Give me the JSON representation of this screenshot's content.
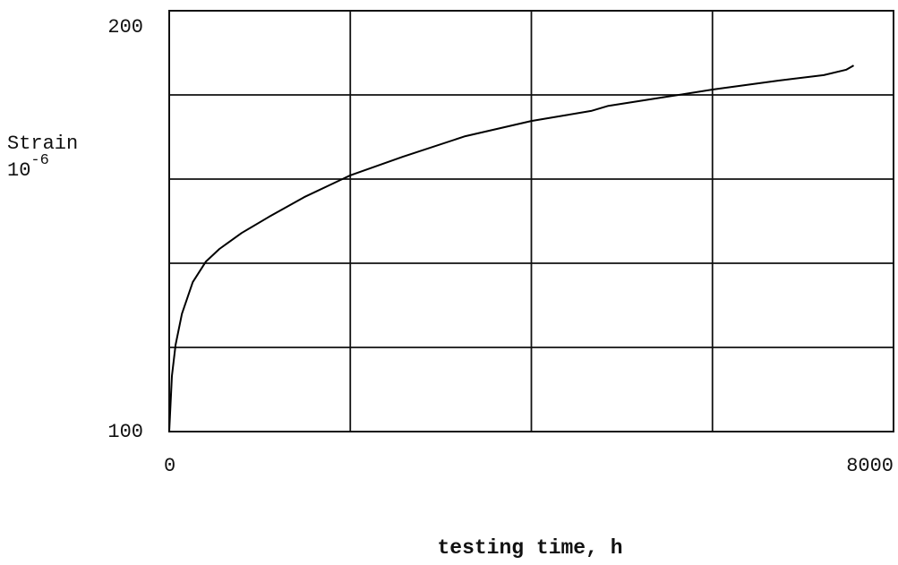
{
  "chart_data": {
    "type": "line",
    "xlabel": "testing time, h",
    "ylabel": "Strain",
    "ylabel_unit": {
      "base": "10",
      "exponent": "-6"
    },
    "x": [
      0,
      30,
      70,
      140,
      260,
      405,
      555,
      800,
      1100,
      1490,
      2000,
      2580,
      3270,
      4000,
      4660,
      4850,
      5450,
      6010,
      6730,
      7230,
      7480,
      7560
    ],
    "series": [
      {
        "color": "#000000",
        "values": [
          100,
          113.2,
          120.6,
          128,
          135.5,
          140.4,
          143.4,
          147.2,
          151,
          155.7,
          160.9,
          165.3,
          170.2,
          173.8,
          176.2,
          177.4,
          179.4,
          181.3,
          183.4,
          184.7,
          186,
          187
        ]
      }
    ],
    "xlim": [
      0,
      8000
    ],
    "xticks": [
      0,
      8000
    ],
    "ylim": [
      100,
      200
    ],
    "yticks": [
      100,
      200
    ],
    "grid": true,
    "xgrid": [
      2000,
      4000,
      6000
    ],
    "ygrid": [
      120,
      140,
      160,
      180
    ]
  }
}
